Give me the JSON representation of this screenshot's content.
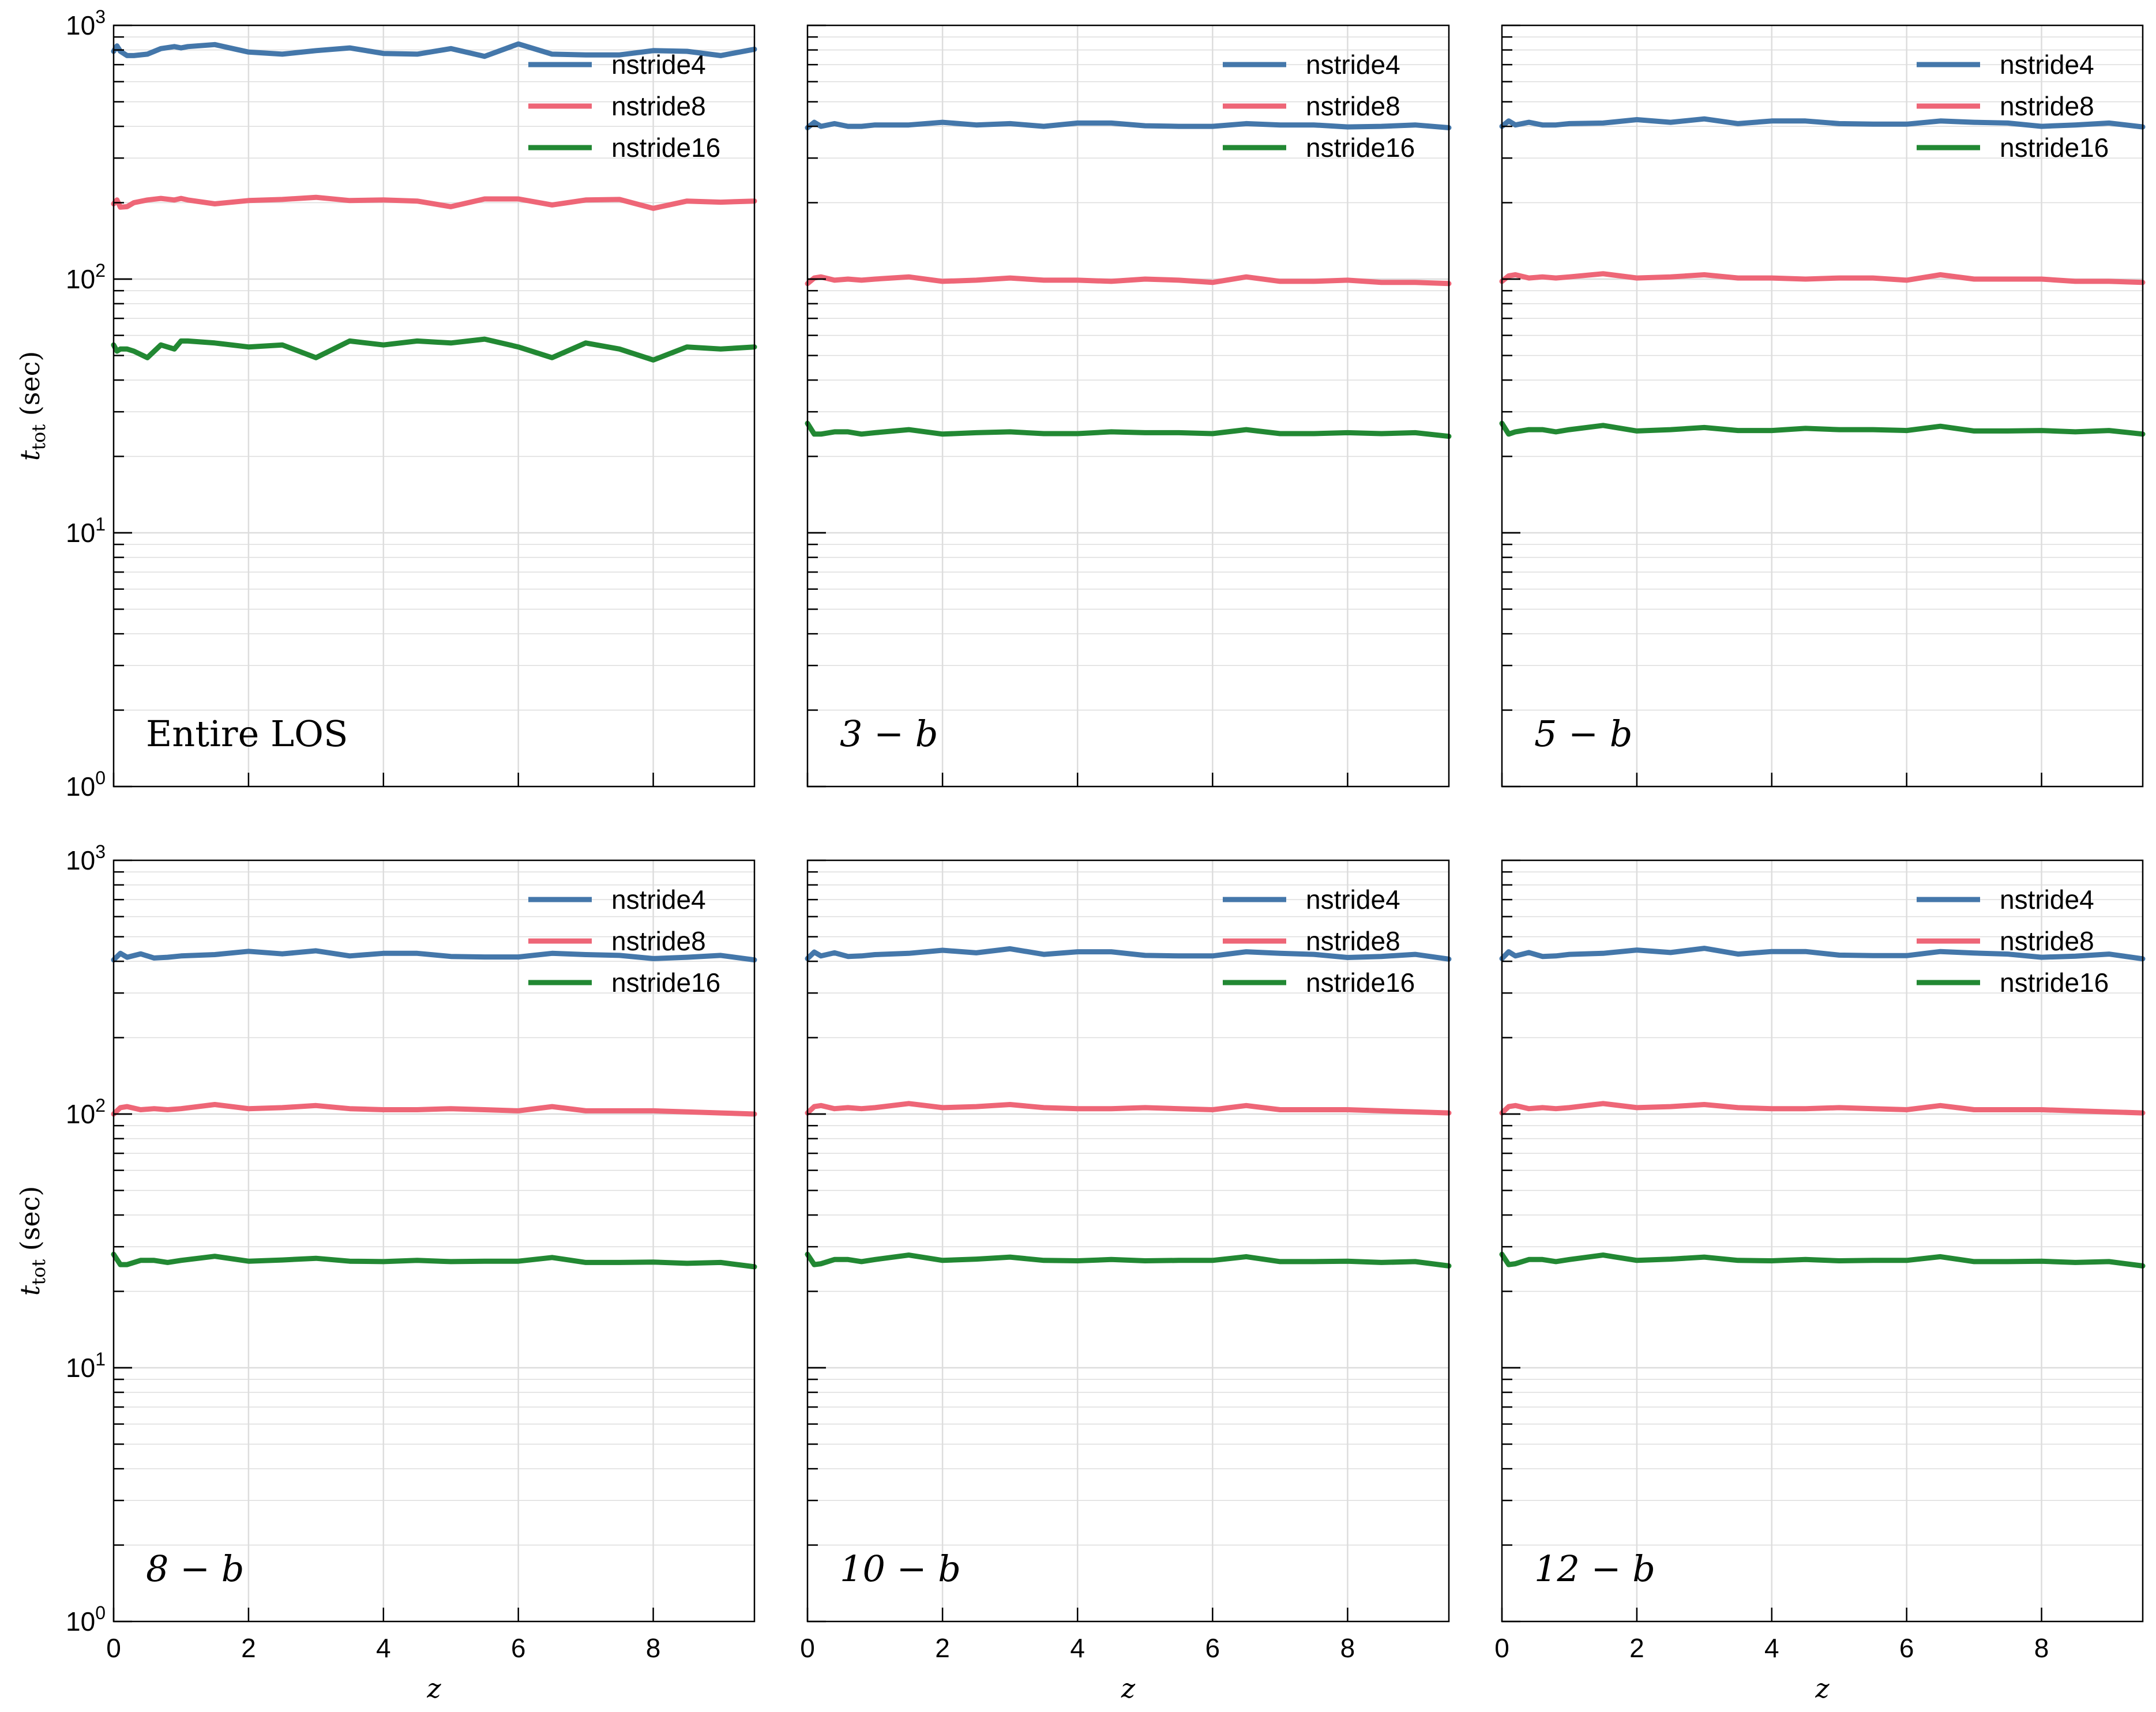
{
  "legend_entries": [
    "nstride4",
    "nstride8",
    "nstride16"
  ],
  "colors": {
    "nstride4": "#4477AA",
    "nstride8": "#EE6677",
    "nstride16": "#228833",
    "grid": "#dddddd",
    "axis": "#000000"
  },
  "axis_labels": {
    "x": "z",
    "y_main": "t",
    "y_sub": "tot",
    "y_unit": "(sec)"
  },
  "chart_data": [
    {
      "type": "line",
      "panel_label": "Entire LOS",
      "label_italic": false,
      "xlim": [
        0,
        9.5
      ],
      "ylim": [
        1,
        1000
      ],
      "yscale": "log",
      "grid": true,
      "legend_placement": "top-right",
      "xticks": [
        0,
        2,
        4,
        6,
        8
      ],
      "yticks": [
        {
          "base": "10",
          "exp": "0"
        },
        {
          "base": "10",
          "exp": "1"
        },
        {
          "base": "10",
          "exp": "2"
        },
        {
          "base": "10",
          "exp": "3"
        }
      ],
      "x": [
        0,
        0.05,
        0.1,
        0.2,
        0.3,
        0.5,
        0.7,
        0.9,
        1,
        1.1,
        1.5,
        2,
        2.5,
        3,
        3.5,
        4,
        4.5,
        5,
        5.5,
        6,
        6.5,
        7,
        7.5,
        8,
        8.5,
        9,
        9.5
      ],
      "series": [
        {
          "name": "nstride4",
          "values": [
            790,
            830,
            790,
            760,
            760,
            770,
            810,
            825,
            815,
            825,
            840,
            785,
            770,
            795,
            815,
            775,
            770,
            810,
            755,
            845,
            770,
            765,
            765,
            795,
            790,
            760,
            805
          ]
        },
        {
          "name": "nstride8",
          "values": [
            198,
            205,
            192,
            193,
            200,
            205,
            208,
            205,
            208,
            205,
            198,
            204,
            206,
            210,
            204,
            205,
            203,
            193,
            207,
            207,
            196,
            205,
            206,
            190,
            203,
            201,
            203
          ]
        },
        {
          "name": "nstride16",
          "values": [
            55,
            52,
            53,
            53,
            52,
            49,
            55,
            53,
            57,
            57,
            56,
            54,
            55,
            49,
            57,
            55,
            57,
            56,
            58,
            54,
            49,
            56,
            53,
            48,
            54,
            53,
            54
          ]
        }
      ]
    },
    {
      "type": "line",
      "panel_label": "3 − b",
      "label_italic": true,
      "xlim": [
        0,
        9.5
      ],
      "ylim": [
        1,
        1000
      ],
      "yscale": "log",
      "grid": true,
      "legend_placement": "top-right",
      "xticks": [
        0,
        2,
        4,
        6,
        8
      ],
      "yticks": [],
      "x": [
        0,
        0.1,
        0.2,
        0.4,
        0.6,
        0.8,
        1,
        1.5,
        2,
        2.5,
        3,
        3.5,
        4,
        4.5,
        5,
        5.5,
        6,
        6.5,
        7,
        7.5,
        8,
        8.5,
        9,
        9.5
      ],
      "series": [
        {
          "name": "nstride4",
          "values": [
            395,
            415,
            400,
            410,
            400,
            400,
            405,
            405,
            415,
            405,
            410,
            400,
            412,
            412,
            402,
            400,
            400,
            410,
            405,
            405,
            398,
            400,
            405,
            395
          ]
        },
        {
          "name": "nstride8",
          "values": [
            96,
            101,
            102,
            99,
            100,
            99,
            100,
            102,
            98,
            99,
            101,
            99,
            99,
            98,
            100,
            99,
            97,
            102,
            98,
            98,
            99,
            97,
            97,
            96
          ]
        },
        {
          "name": "nstride16",
          "values": [
            27,
            24.5,
            24.5,
            25,
            25,
            24.5,
            24.8,
            25.5,
            24.5,
            24.8,
            25,
            24.6,
            24.6,
            25,
            24.8,
            24.8,
            24.6,
            25.5,
            24.6,
            24.6,
            24.8,
            24.6,
            24.8,
            24
          ]
        }
      ]
    },
    {
      "type": "line",
      "panel_label": "5 − b",
      "label_italic": true,
      "xlim": [
        0,
        9.5
      ],
      "ylim": [
        1,
        1000
      ],
      "yscale": "log",
      "grid": true,
      "legend_placement": "top-right",
      "xticks": [
        0,
        2,
        4,
        6,
        8
      ],
      "yticks": [],
      "x": [
        0,
        0.1,
        0.2,
        0.4,
        0.6,
        0.8,
        1,
        1.5,
        2,
        2.5,
        3,
        3.5,
        4,
        4.5,
        5,
        5.5,
        6,
        6.5,
        7,
        7.5,
        8,
        8.5,
        9,
        9.5
      ],
      "series": [
        {
          "name": "nstride4",
          "values": [
            400,
            420,
            405,
            415,
            405,
            405,
            410,
            412,
            425,
            415,
            428,
            410,
            420,
            420,
            410,
            408,
            408,
            420,
            415,
            412,
            400,
            405,
            412,
            398
          ]
        },
        {
          "name": "nstride8",
          "values": [
            98,
            103,
            104,
            101,
            102,
            101,
            102,
            105,
            101,
            102,
            104,
            101,
            101,
            100,
            101,
            101,
            99,
            104,
            100,
            100,
            100,
            98,
            98,
            97
          ]
        },
        {
          "name": "nstride16",
          "values": [
            27,
            24.5,
            25,
            25.5,
            25.5,
            25,
            25.5,
            26.5,
            25.2,
            25.5,
            26,
            25.3,
            25.3,
            25.8,
            25.5,
            25.5,
            25.3,
            26.3,
            25.2,
            25.2,
            25.3,
            25,
            25.3,
            24.5
          ]
        }
      ]
    },
    {
      "type": "line",
      "panel_label": "8 − b",
      "label_italic": true,
      "xlim": [
        0,
        9.5
      ],
      "ylim": [
        1,
        1000
      ],
      "yscale": "log",
      "grid": true,
      "legend_placement": "top-right",
      "xticks": [
        0,
        2,
        4,
        6,
        8
      ],
      "yticks": [
        {
          "base": "10",
          "exp": "0"
        },
        {
          "base": "10",
          "exp": "1"
        },
        {
          "base": "10",
          "exp": "2"
        },
        {
          "base": "10",
          "exp": "3"
        }
      ],
      "x": [
        0,
        0.1,
        0.2,
        0.4,
        0.6,
        0.8,
        1,
        1.5,
        2,
        2.5,
        3,
        3.5,
        4,
        4.5,
        5,
        5.5,
        6,
        6.5,
        7,
        7.5,
        8,
        8.5,
        9,
        9.5
      ],
      "series": [
        {
          "name": "nstride4",
          "values": [
            405,
            430,
            415,
            428,
            412,
            415,
            420,
            425,
            438,
            428,
            440,
            420,
            430,
            430,
            418,
            416,
            416,
            430,
            425,
            422,
            410,
            415,
            422,
            405
          ]
        },
        {
          "name": "nstride8",
          "values": [
            100,
            106,
            107,
            104,
            105,
            104,
            105,
            109,
            105,
            106,
            108,
            105,
            104,
            104,
            105,
            104,
            103,
            107,
            103,
            103,
            103,
            102,
            101,
            100
          ]
        },
        {
          "name": "nstride16",
          "values": [
            28,
            25.5,
            25.5,
            26.5,
            26.5,
            26,
            26.5,
            27.5,
            26.3,
            26.6,
            27,
            26.3,
            26.2,
            26.5,
            26.2,
            26.3,
            26.3,
            27.2,
            26,
            26,
            26.1,
            25.8,
            26,
            25
          ]
        }
      ]
    },
    {
      "type": "line",
      "panel_label": "10 − b",
      "label_italic": true,
      "xlim": [
        0,
        9.5
      ],
      "ylim": [
        1,
        1000
      ],
      "yscale": "log",
      "grid": true,
      "legend_placement": "top-right",
      "xticks": [
        0,
        2,
        4,
        6,
        8
      ],
      "yticks": [],
      "x": [
        0,
        0.1,
        0.2,
        0.4,
        0.6,
        0.8,
        1,
        1.5,
        2,
        2.5,
        3,
        3.5,
        4,
        4.5,
        5,
        5.5,
        6,
        6.5,
        7,
        7.5,
        8,
        8.5,
        9,
        9.5
      ],
      "series": [
        {
          "name": "nstride4",
          "values": [
            410,
            435,
            420,
            432,
            418,
            420,
            425,
            430,
            442,
            432,
            448,
            426,
            436,
            436,
            422,
            420,
            420,
            436,
            430,
            426,
            414,
            418,
            426,
            408
          ]
        },
        {
          "name": "nstride8",
          "values": [
            101,
            107,
            108,
            105,
            106,
            105,
            106,
            110,
            106,
            107,
            109,
            106,
            105,
            105,
            106,
            105,
            104,
            108,
            104,
            104,
            104,
            103,
            102,
            101
          ]
        },
        {
          "name": "nstride16",
          "values": [
            28,
            25.5,
            25.7,
            26.7,
            26.7,
            26.2,
            26.7,
            27.8,
            26.5,
            26.8,
            27.3,
            26.5,
            26.4,
            26.7,
            26.4,
            26.5,
            26.5,
            27.4,
            26.2,
            26.2,
            26.3,
            26,
            26.2,
            25.2
          ]
        }
      ]
    },
    {
      "type": "line",
      "panel_label": "12 − b",
      "label_italic": true,
      "xlim": [
        0,
        9.5
      ],
      "ylim": [
        1,
        1000
      ],
      "yscale": "log",
      "grid": true,
      "legend_placement": "top-right",
      "xticks": [
        0,
        2,
        4,
        6,
        8
      ],
      "yticks": [],
      "x": [
        0,
        0.1,
        0.2,
        0.4,
        0.6,
        0.8,
        1,
        1.5,
        2,
        2.5,
        3,
        3.5,
        4,
        4.5,
        5,
        5.5,
        6,
        6.5,
        7,
        7.5,
        8,
        8.5,
        9,
        9.5
      ],
      "series": [
        {
          "name": "nstride4",
          "values": [
            410,
            436,
            420,
            433,
            418,
            420,
            426,
            430,
            443,
            433,
            450,
            427,
            437,
            437,
            423,
            421,
            421,
            437,
            431,
            427,
            415,
            419,
            427,
            409
          ]
        },
        {
          "name": "nstride8",
          "values": [
            101,
            107,
            108,
            105,
            106,
            105,
            106,
            110,
            106,
            107,
            109,
            106,
            105,
            105,
            106,
            105,
            104,
            108,
            104,
            104,
            104,
            103,
            102,
            101
          ]
        },
        {
          "name": "nstride16",
          "values": [
            28,
            25.5,
            25.7,
            26.7,
            26.7,
            26.2,
            26.7,
            27.8,
            26.5,
            26.8,
            27.3,
            26.5,
            26.4,
            26.7,
            26.4,
            26.5,
            26.5,
            27.4,
            26.2,
            26.2,
            26.3,
            26,
            26.2,
            25.2
          ]
        }
      ]
    }
  ]
}
